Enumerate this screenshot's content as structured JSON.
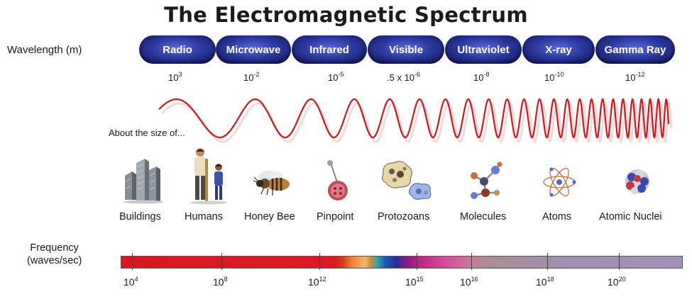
{
  "title": "The Electromagnetic Spectrum",
  "wavelength_label": "Wavelength (m)",
  "bands": [
    {
      "label": "Radio"
    },
    {
      "label": "Microwave"
    },
    {
      "label": "Infrared"
    },
    {
      "label": "Visible"
    },
    {
      "label": "Ultraviolet"
    },
    {
      "label": "X-ray"
    },
    {
      "label": "Gamma Ray"
    }
  ],
  "wavelengths": [
    {
      "base": "10",
      "exp": "3"
    },
    {
      "base": "10",
      "exp": "-2"
    },
    {
      "base": "10",
      "exp": "-5"
    },
    {
      "base": ".5 x 10",
      "exp": "-6"
    },
    {
      "base": "10",
      "exp": "-8"
    },
    {
      "base": "10",
      "exp": "-10"
    },
    {
      "base": "10",
      "exp": "-12"
    }
  ],
  "about_label": "About the size of...",
  "objects": [
    {
      "label": "Buildings",
      "icon": "buildings-icon"
    },
    {
      "label": "Humans",
      "icon": "humans-icon"
    },
    {
      "label": "Honey Bee",
      "icon": "honey-bee-icon"
    },
    {
      "label": "Pinpoint",
      "icon": "pinpoint-icon"
    },
    {
      "label": "Protozoans",
      "icon": "protozoans-icon"
    },
    {
      "label": "Molecules",
      "icon": "molecules-icon"
    },
    {
      "label": "Atoms",
      "icon": "atom-icon"
    },
    {
      "label": "Atomic Nuclei",
      "icon": "atomic-nuclei-icon"
    }
  ],
  "frequency_label_line1": "Frequency",
  "frequency_label_line2": "(waves/sec)",
  "frequencies": [
    {
      "base": "10",
      "exp": "4"
    },
    {
      "base": "10",
      "exp": "8"
    },
    {
      "base": "10",
      "exp": "12"
    },
    {
      "base": "10",
      "exp": "15"
    },
    {
      "base": "10",
      "exp": "16"
    },
    {
      "base": "10",
      "exp": "18"
    },
    {
      "base": "10",
      "exp": "20"
    }
  ],
  "colors": {
    "band_dark": "#0e1456",
    "band_light": "#5a68d8",
    "wave": "#d4161c"
  }
}
